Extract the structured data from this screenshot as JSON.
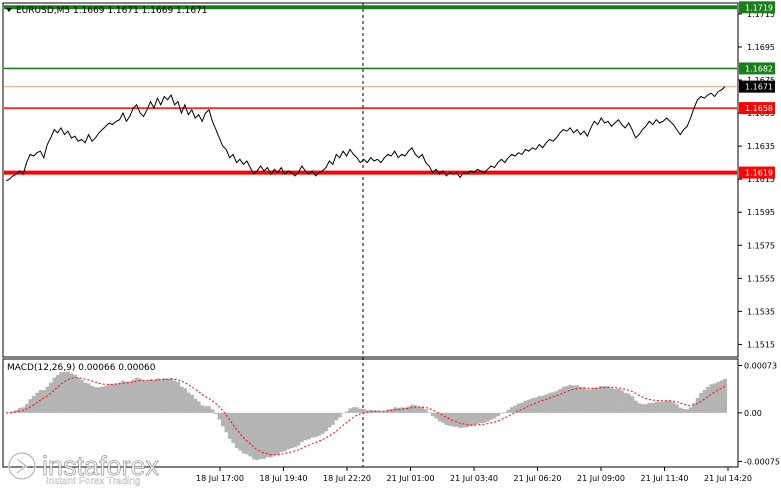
{
  "header": {
    "symbol_line": "EURUSD,M5  1.1669 1.1671 1.1669 1.1671"
  },
  "macd": {
    "label": "MACD(12,26,9) 0.00066 0.00060",
    "ticks": [
      "0.00073",
      "0.00",
      "-0.00075"
    ]
  },
  "watermark": {
    "brand": "instaforex",
    "tagline": "Instant Forex Trading"
  },
  "colors": {
    "price_line": "#000000",
    "support_resistance": "#ff0000",
    "target_line": "#1a7f1a",
    "current_price_line": "#f4a582",
    "macd_histogram": "#b4b4b4",
    "macd_signal": "#ff0000",
    "background": "#ffffff"
  },
  "chart_data": {
    "type": "line",
    "title": "EURUSD,M5",
    "ohlc": {
      "open": 1.1669,
      "high": 1.1671,
      "low": 1.1669,
      "close": 1.1671
    },
    "y_ticks": [
      "1.1715",
      "1.1695",
      "1.1675",
      "1.1655",
      "1.1635",
      "1.1615",
      "1.1595",
      "1.1575",
      "1.1555",
      "1.1535",
      "1.1515"
    ],
    "ylim": [
      1.1508,
      1.1721
    ],
    "x_ticks": [
      "18 Jul 17:00",
      "18 Jul 19:40",
      "18 Jul 22:20",
      "21 Jul 01:00",
      "21 Jul 03:40",
      "21 Jul 06:20",
      "21 Jul 09:00",
      "21 Jul 11:40",
      "21 Jul 14:20"
    ],
    "horizontal_levels": [
      {
        "value": 1.1719,
        "label": "1.1719",
        "color": "#1a7f1a",
        "style": "thick"
      },
      {
        "value": 1.1682,
        "label": "1.1682",
        "color": "#1a7f1a",
        "style": "normal"
      },
      {
        "value": 1.1671,
        "label": "1.1671",
        "color": "#f4a582",
        "style": "current"
      },
      {
        "value": 1.1658,
        "label": "1.1658",
        "color": "#ff0000",
        "style": "normal"
      },
      {
        "value": 1.1619,
        "label": "1.1619",
        "color": "#ff0000",
        "style": "thick"
      }
    ],
    "series": [
      {
        "values": [
          1.1614,
          1.1615,
          1.1617,
          1.1618,
          1.162,
          1.1618,
          1.1625,
          1.163,
          1.1629,
          1.1631,
          1.1632,
          1.1628,
          1.1636,
          1.164,
          1.1645,
          1.1643,
          1.1646,
          1.1642,
          1.1644,
          1.164,
          1.1641,
          1.1638,
          1.1639,
          1.1637,
          1.1642,
          1.1638,
          1.164,
          1.1643,
          1.1645,
          1.1647,
          1.1649,
          1.1648,
          1.165,
          1.1651,
          1.1655,
          1.165,
          1.1653,
          1.1658,
          1.166,
          1.1655,
          1.1653,
          1.1657,
          1.1662,
          1.1658,
          1.1664,
          1.166,
          1.1665,
          1.1663,
          1.1666,
          1.166,
          1.1662,
          1.1655,
          1.166,
          1.1654,
          1.1657,
          1.1652,
          1.1654,
          1.165,
          1.1655,
          1.1657,
          1.165,
          1.1645,
          1.164,
          1.1635,
          1.1633,
          1.1628,
          1.163,
          1.1625,
          1.1627,
          1.1624,
          1.1626,
          1.1622,
          1.1618,
          1.162,
          1.1623,
          1.162,
          1.1622,
          1.1618,
          1.1621,
          1.1619,
          1.1622,
          1.1618,
          1.162,
          1.1619,
          1.1617,
          1.1619,
          1.1623,
          1.162,
          1.1618,
          1.162,
          1.1617,
          1.1619,
          1.162,
          1.1622,
          1.1626,
          1.1624,
          1.163,
          1.1628,
          1.1632,
          1.1629,
          1.1633,
          1.163,
          1.1628,
          1.1625,
          1.1627,
          1.1625,
          1.1628,
          1.1626,
          1.1627,
          1.1625,
          1.1628,
          1.163,
          1.1629,
          1.1632,
          1.1628,
          1.163,
          1.1629,
          1.1632,
          1.1634,
          1.163,
          1.1628,
          1.163,
          1.1625,
          1.1623,
          1.1619,
          1.1621,
          1.1618,
          1.162,
          1.1617,
          1.1619,
          1.1618,
          1.1619,
          1.1616,
          1.1619,
          1.1618,
          1.162,
          1.1619,
          1.1621,
          1.162,
          1.1619,
          1.1621,
          1.1623,
          1.1622,
          1.1625,
          1.1627,
          1.1625,
          1.1628,
          1.163,
          1.1629,
          1.1631,
          1.163,
          1.1633,
          1.1632,
          1.1634,
          1.1633,
          1.1636,
          1.1634,
          1.1637,
          1.1639,
          1.1638,
          1.164,
          1.1643,
          1.1645,
          1.1644,
          1.1646,
          1.1643,
          1.1645,
          1.1642,
          1.1644,
          1.1641,
          1.1646,
          1.165,
          1.1648,
          1.1652,
          1.1649,
          1.165,
          1.1647,
          1.1649,
          1.1651,
          1.1648,
          1.1646,
          1.1649,
          1.1645,
          1.164,
          1.1642,
          1.1645,
          1.1647,
          1.165,
          1.1648,
          1.1651,
          1.1649,
          1.165,
          1.1652,
          1.165,
          1.1648,
          1.1645,
          1.1642,
          1.1645,
          1.1647,
          1.1652,
          1.1658,
          1.1663,
          1.1665,
          1.1664,
          1.1666,
          1.1667,
          1.1665,
          1.1668,
          1.1669,
          1.1671
        ]
      }
    ]
  }
}
